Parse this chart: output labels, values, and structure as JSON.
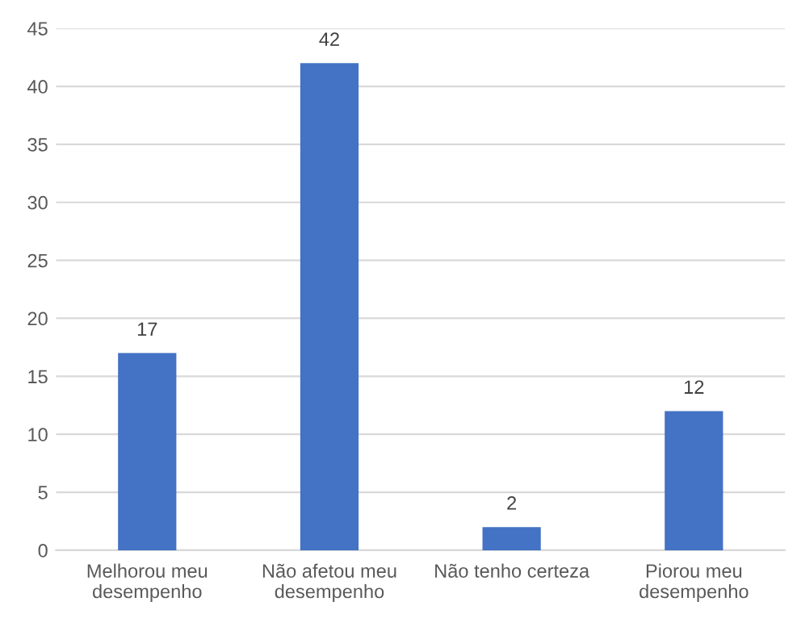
{
  "chart_data": {
    "type": "bar",
    "categories": [
      "Melhorou meu\ndesempenho",
      "Não afetou meu\ndesempenho",
      "Não tenho certeza",
      "Piorou meu\ndesempenho"
    ],
    "values": [
      17,
      42,
      2,
      12
    ],
    "color": "#4472c4",
    "ylim": [
      0,
      45
    ],
    "yticks": [
      0,
      5,
      10,
      15,
      20,
      25,
      30,
      35,
      40,
      45
    ],
    "grid": "y",
    "data_labels": true
  }
}
